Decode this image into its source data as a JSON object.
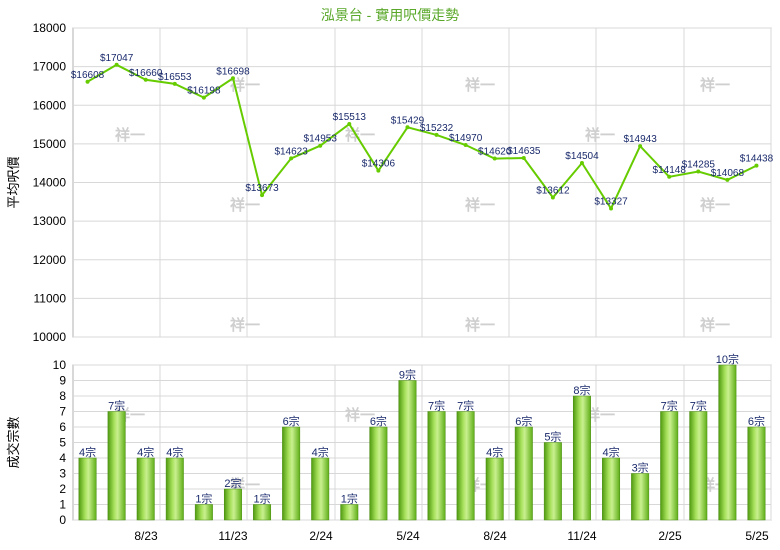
{
  "chart_data": [
    {
      "type": "line",
      "title": "泓景台 - 實用呎價走勢",
      "ylabel": "平均呎價",
      "ylim": [
        10000,
        18000
      ],
      "yticks": [
        10000,
        11000,
        12000,
        13000,
        14000,
        15000,
        16000,
        17000,
        18000
      ],
      "grid": true,
      "color": "#66cc00",
      "x": [
        "2023-06",
        "2023-07",
        "2023-08",
        "2023-09",
        "2023-10",
        "2023-11",
        "2023-12",
        "2024-01",
        "2024-02",
        "2024-03",
        "2024-04",
        "2024-05",
        "2024-06",
        "2024-07",
        "2024-08",
        "2024-09",
        "2024-10",
        "2024-11",
        "2024-12",
        "2025-01",
        "2025-02",
        "2025-03",
        "2025-04",
        "2025-05"
      ],
      "values": [
        16608,
        17047,
        16660,
        16553,
        16198,
        16698,
        13673,
        14623,
        14953,
        15513,
        14306,
        15429,
        15232,
        14970,
        14620,
        14635,
        13612,
        14504,
        13327,
        14943,
        14148,
        14285,
        14068,
        14438
      ],
      "labels": [
        "$16608",
        "$17047",
        "$16660",
        "$16553",
        "$16198",
        "$16698",
        "$13673",
        "$14623",
        "$14953",
        "$15513",
        "$14306",
        "$15429",
        "$15232",
        "$14970",
        "$14620",
        "$14635",
        "$13612",
        "$14504",
        "$13327",
        "$14943",
        "$14148",
        "$14285",
        "$14068",
        "$14438"
      ]
    },
    {
      "type": "bar",
      "ylabel": "成交宗數",
      "ylim": [
        0,
        10
      ],
      "yticks": [
        0,
        1,
        2,
        3,
        4,
        5,
        6,
        7,
        8,
        9,
        10
      ],
      "grid": true,
      "color": "#77cc22",
      "x": [
        "2023-06",
        "2023-07",
        "2023-08",
        "2023-09",
        "2023-10",
        "2023-11",
        "2023-12",
        "2024-01",
        "2024-02",
        "2024-03",
        "2024-04",
        "2024-05",
        "2024-06",
        "2024-07",
        "2024-08",
        "2024-09",
        "2024-10",
        "2024-11",
        "2024-12",
        "2025-01",
        "2025-02",
        "2025-03",
        "2025-04",
        "2025-05"
      ],
      "values": [
        4,
        7,
        4,
        4,
        1,
        2,
        1,
        6,
        4,
        1,
        6,
        9,
        7,
        7,
        4,
        6,
        5,
        8,
        4,
        3,
        7,
        7,
        10,
        6
      ],
      "labels": [
        "4宗",
        "7宗",
        "4宗",
        "4宗",
        "1宗",
        "2宗",
        "1宗",
        "6宗",
        "4宗",
        "1宗",
        "6宗",
        "9宗",
        "7宗",
        "7宗",
        "4宗",
        "6宗",
        "5宗",
        "8宗",
        "4宗",
        "3宗",
        "7宗",
        "7宗",
        "10宗",
        "6宗"
      ],
      "xtick_labels": [
        "8/23",
        "11/23",
        "2/24",
        "5/24",
        "8/24",
        "11/24",
        "2/25",
        "5/25"
      ]
    }
  ],
  "watermark": "祥一"
}
